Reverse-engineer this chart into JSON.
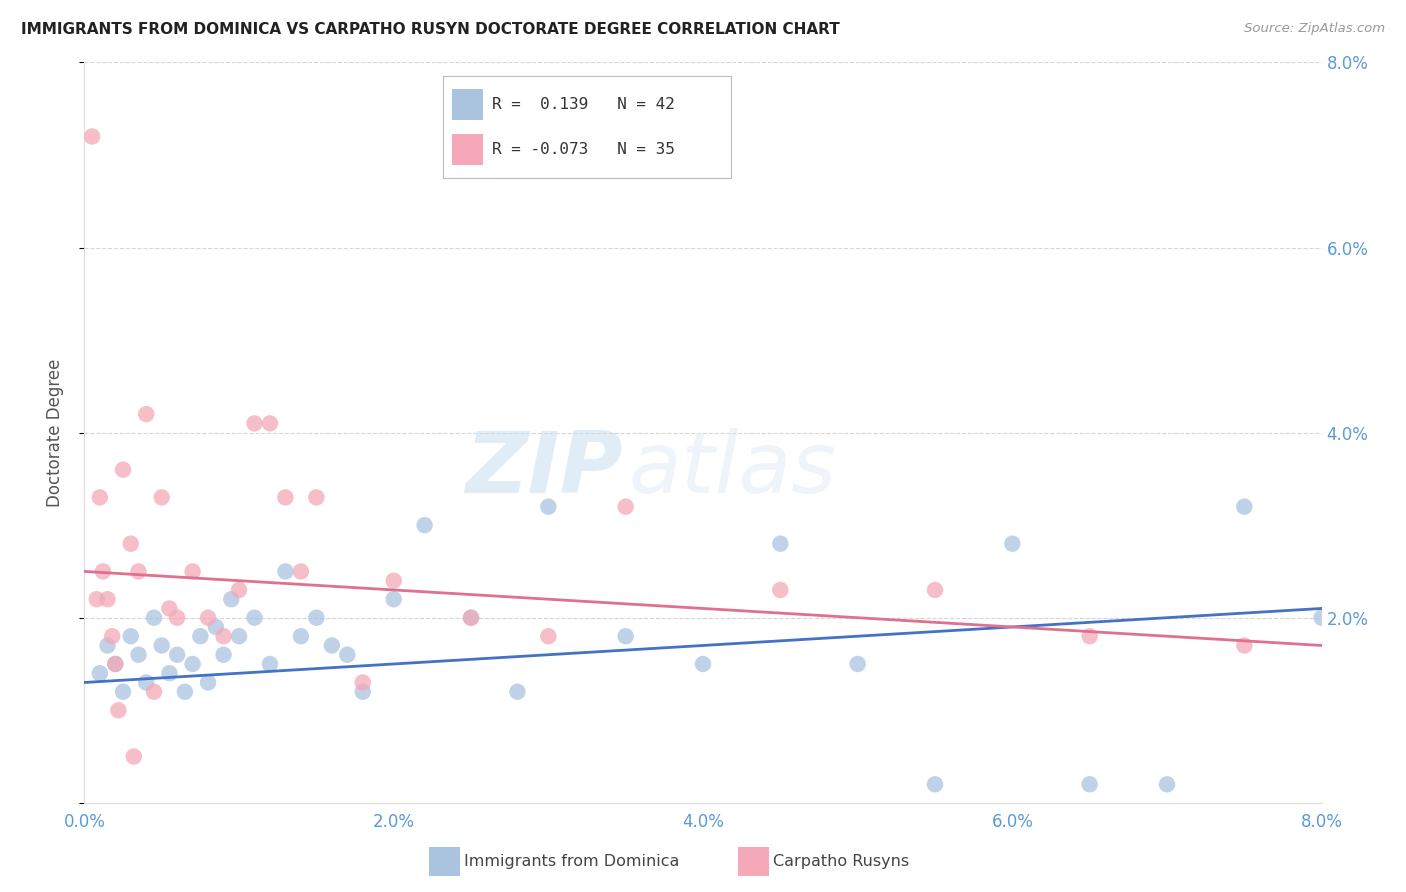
{
  "title": "IMMIGRANTS FROM DOMINICA VS CARPATHO RUSYN DOCTORATE DEGREE CORRELATION CHART",
  "source": "Source: ZipAtlas.com",
  "ylabel": "Doctorate Degree",
  "xlim": [
    0.0,
    8.0
  ],
  "ylim": [
    0.0,
    8.0
  ],
  "blue_scatter_x": [
    0.1,
    0.15,
    0.2,
    0.25,
    0.3,
    0.35,
    0.4,
    0.45,
    0.5,
    0.55,
    0.6,
    0.65,
    0.7,
    0.75,
    0.8,
    0.85,
    0.9,
    0.95,
    1.0,
    1.1,
    1.2,
    1.3,
    1.4,
    1.5,
    1.6,
    1.7,
    1.8,
    2.0,
    2.2,
    2.5,
    2.8,
    3.0,
    3.5,
    4.0,
    4.5,
    5.0,
    5.5,
    6.0,
    6.5,
    7.0,
    7.5,
    8.0
  ],
  "blue_scatter_y": [
    1.4,
    1.7,
    1.5,
    1.2,
    1.8,
    1.6,
    1.3,
    2.0,
    1.7,
    1.4,
    1.6,
    1.2,
    1.5,
    1.8,
    1.3,
    1.9,
    1.6,
    2.2,
    1.8,
    2.0,
    1.5,
    2.5,
    1.8,
    2.0,
    1.7,
    1.6,
    1.2,
    2.2,
    3.0,
    2.0,
    1.2,
    3.2,
    1.8,
    1.5,
    2.8,
    1.5,
    0.2,
    2.8,
    0.2,
    0.2,
    3.2,
    2.0
  ],
  "pink_scatter_x": [
    0.05,
    0.08,
    0.1,
    0.12,
    0.15,
    0.18,
    0.2,
    0.25,
    0.3,
    0.35,
    0.4,
    0.5,
    0.55,
    0.6,
    0.7,
    0.8,
    0.9,
    1.0,
    1.1,
    1.2,
    1.3,
    1.4,
    1.5,
    1.8,
    2.0,
    2.5,
    3.0,
    3.5,
    4.5,
    5.5,
    6.5,
    7.5,
    0.22,
    0.32,
    0.45
  ],
  "pink_scatter_y": [
    7.2,
    2.2,
    3.3,
    2.5,
    2.2,
    1.8,
    1.5,
    3.6,
    2.8,
    2.5,
    4.2,
    3.3,
    2.1,
    2.0,
    2.5,
    2.0,
    1.8,
    2.3,
    4.1,
    4.1,
    3.3,
    2.5,
    3.3,
    1.3,
    2.4,
    2.0,
    1.8,
    3.2,
    2.3,
    2.3,
    1.8,
    1.7,
    1.0,
    0.5,
    1.2
  ],
  "blue_line_x": [
    0.0,
    8.0
  ],
  "blue_line_y": [
    1.3,
    2.1
  ],
  "pink_line_x": [
    0.0,
    8.0
  ],
  "pink_line_y": [
    2.5,
    1.7
  ],
  "blue_color": "#aac4e0",
  "pink_color": "#f4a8b8",
  "blue_line_color": "#4472c4",
  "pink_line_color": "#e07090",
  "right_axis_color": "#5b9bd5",
  "grid_color": "#cccccc",
  "watermark_zip": "ZIP",
  "watermark_atlas": "atlas",
  "legend_blue_R": " 0.139",
  "legend_blue_N": "42",
  "legend_pink_R": "-0.073",
  "legend_pink_N": "35",
  "legend_label_blue": "Immigrants from Dominica",
  "legend_label_pink": "Carpatho Rusyns"
}
